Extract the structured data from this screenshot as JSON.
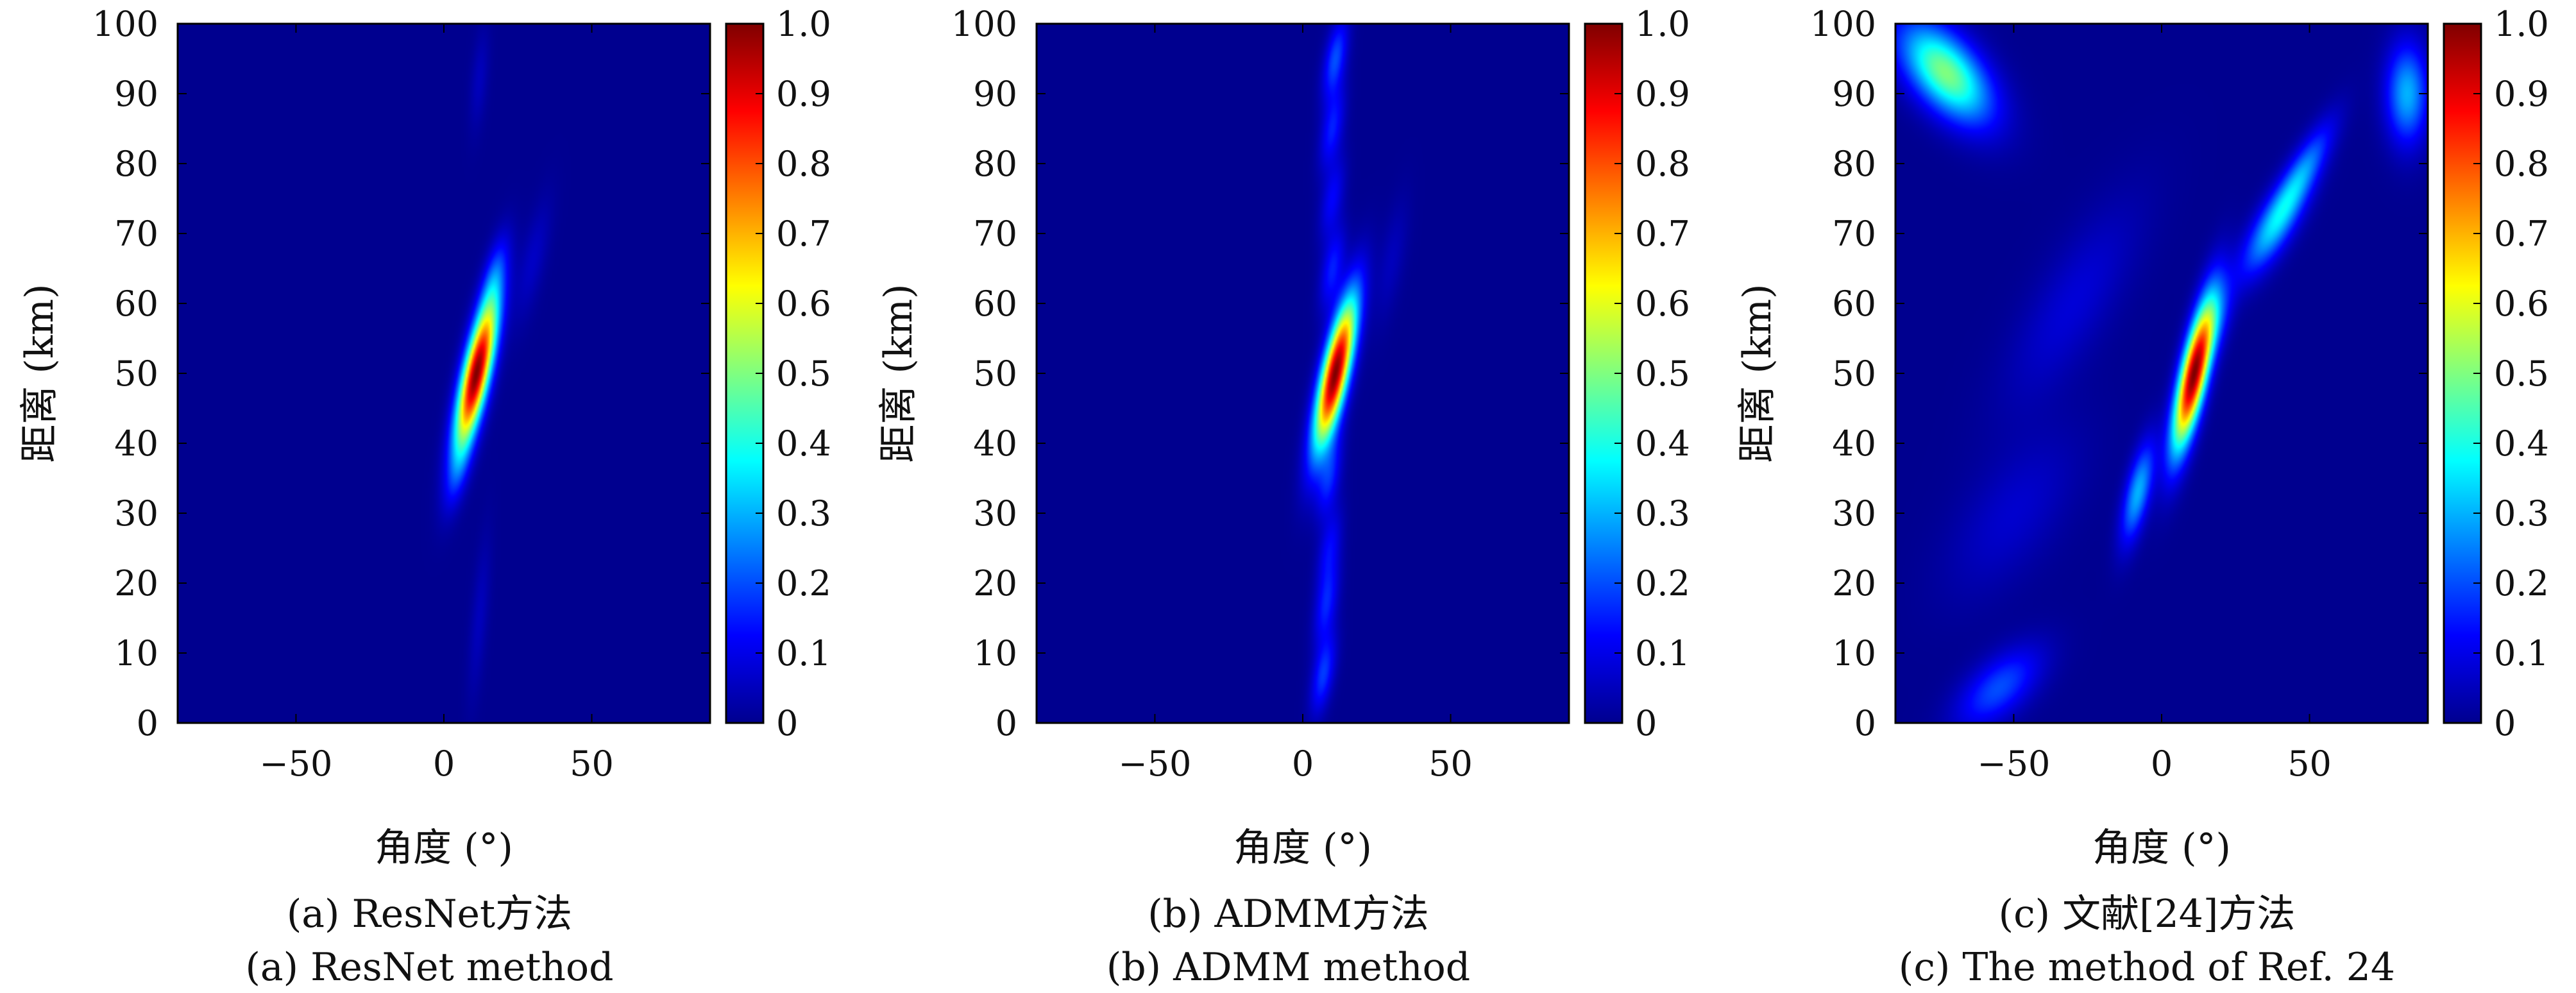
{
  "colors": {
    "jet": [
      "#00008f",
      "#0000ff",
      "#00ffff",
      "#ffff00",
      "#ff0000",
      "#800000"
    ],
    "background": "#00008f",
    "axis": "#000000"
  },
  "chart_data": [
    {
      "type": "heatmap",
      "caption_cn": "(a) ResNet方法",
      "caption_en": "(a) ResNet method",
      "xlabel": "角度 (°)",
      "ylabel": "距离 (km)",
      "xlim": [
        -90,
        90
      ],
      "ylim": [
        0,
        100
      ],
      "xticks": [
        -50,
        0,
        50
      ],
      "xtick_labels": [
        "−50",
        "0",
        "50"
      ],
      "yticks": [
        0,
        10,
        20,
        30,
        40,
        50,
        60,
        70,
        80,
        90,
        100
      ],
      "colorbar": {
        "range": [
          0,
          1
        ],
        "ticks": [
          "0",
          "0.1",
          "0.2",
          "0.3",
          "0.4",
          "0.5",
          "0.6",
          "0.7",
          "0.8",
          "0.9",
          "1.0"
        ]
      },
      "colormap": "jet",
      "peaks": [
        {
          "angle": 11,
          "range": 50,
          "value": 1.0,
          "angle_width": 3.2,
          "range_width": 7.5,
          "tilt_deg_per_km": 0.5
        },
        {
          "angle": 17,
          "range": 64,
          "value": 0.12,
          "angle_width": 2.5,
          "range_width": 4,
          "tilt_deg_per_km": 0.5
        },
        {
          "angle": 5,
          "range": 36,
          "value": 0.1,
          "angle_width": 2.5,
          "range_width": 4,
          "tilt_deg_per_km": 0.5
        },
        {
          "angle": 30,
          "range": 66,
          "value": 0.06,
          "angle_width": 3,
          "range_width": 6,
          "tilt_deg_per_km": 0.5
        },
        {
          "angle": 12,
          "range": 92,
          "value": 0.05,
          "angle_width": 2,
          "range_width": 5,
          "tilt_deg_per_km": 0.2
        },
        {
          "angle": 12,
          "range": 15,
          "value": 0.05,
          "angle_width": 2,
          "range_width": 8,
          "tilt_deg_per_km": 0.2
        }
      ]
    },
    {
      "type": "heatmap",
      "caption_cn": "(b) ADMM方法",
      "caption_en": "(b) ADMM method",
      "xlabel": "角度 (°)",
      "ylabel": "距离 (km)",
      "xlim": [
        -90,
        90
      ],
      "ylim": [
        0,
        100
      ],
      "xticks": [
        -50,
        0,
        50
      ],
      "xtick_labels": [
        "−50",
        "0",
        "50"
      ],
      "yticks": [
        0,
        10,
        20,
        30,
        40,
        50,
        60,
        70,
        80,
        90,
        100
      ],
      "colorbar": {
        "range": [
          0,
          1
        ],
        "ticks": [
          "0",
          "0.1",
          "0.2",
          "0.3",
          "0.4",
          "0.5",
          "0.6",
          "0.7",
          "0.8",
          "0.9",
          "1.0"
        ]
      },
      "colormap": "jet",
      "peaks": [
        {
          "angle": 11,
          "range": 50,
          "value": 1.0,
          "angle_width": 3.2,
          "range_width": 7.5,
          "tilt_deg_per_km": 0.5
        },
        {
          "angle": 11,
          "range": 95,
          "value": 0.2,
          "angle_width": 2.5,
          "range_width": 4,
          "tilt_deg_per_km": 0.4
        },
        {
          "angle": 10,
          "range": 85,
          "value": 0.15,
          "angle_width": 2.5,
          "range_width": 4,
          "tilt_deg_per_km": 0.4
        },
        {
          "angle": 10,
          "range": 75,
          "value": 0.12,
          "angle_width": 2.5,
          "range_width": 4,
          "tilt_deg_per_km": 0.4
        },
        {
          "angle": 10,
          "range": 65,
          "value": 0.15,
          "angle_width": 2.5,
          "range_width": 4,
          "tilt_deg_per_km": 0.4
        },
        {
          "angle": 9,
          "range": 35,
          "value": 0.15,
          "angle_width": 2.5,
          "range_width": 4,
          "tilt_deg_per_km": 0.4
        },
        {
          "angle": 9,
          "range": 25,
          "value": 0.12,
          "angle_width": 2.5,
          "range_width": 4,
          "tilt_deg_per_km": 0.4
        },
        {
          "angle": 8,
          "range": 17,
          "value": 0.15,
          "angle_width": 2.5,
          "range_width": 4,
          "tilt_deg_per_km": 0.4
        },
        {
          "angle": 7,
          "range": 7,
          "value": 0.18,
          "angle_width": 2.5,
          "range_width": 4,
          "tilt_deg_per_km": 0.4
        },
        {
          "angle": 30,
          "range": 66,
          "value": 0.05,
          "angle_width": 3,
          "range_width": 6,
          "tilt_deg_per_km": 0.4
        }
      ]
    },
    {
      "type": "heatmap",
      "caption_cn": "(c) 文献[24]方法",
      "caption_en": "(c) The method of Ref. 24",
      "xlabel": "角度 (°)",
      "ylabel": "距离 (km)",
      "xlim": [
        -90,
        90
      ],
      "ylim": [
        0,
        100
      ],
      "xticks": [
        -50,
        0,
        50
      ],
      "xtick_labels": [
        "−50",
        "0",
        "50"
      ],
      "yticks": [
        0,
        10,
        20,
        30,
        40,
        50,
        60,
        70,
        80,
        90,
        100
      ],
      "colorbar": {
        "range": [
          0,
          1
        ],
        "ticks": [
          "0",
          "0.1",
          "0.2",
          "0.3",
          "0.4",
          "0.5",
          "0.6",
          "0.7",
          "0.8",
          "0.9",
          "1.0"
        ]
      },
      "colormap": "jet",
      "peaks": [
        {
          "angle": 11,
          "range": 50,
          "value": 1.0,
          "angle_width": 3.2,
          "range_width": 7.5,
          "tilt_deg_per_km": 0.5
        },
        {
          "angle": -73,
          "range": 93,
          "value": 0.5,
          "angle_width": 9,
          "range_width": 5,
          "tilt_deg_per_km": -1.2
        },
        {
          "angle": 83,
          "range": 90,
          "value": 0.3,
          "angle_width": 5,
          "range_width": 5,
          "tilt_deg_per_km": 0
        },
        {
          "angle": 38,
          "range": 71,
          "value": 0.3,
          "angle_width": 5,
          "range_width": 5,
          "tilt_deg_per_km": 1.2
        },
        {
          "angle": 48,
          "range": 79,
          "value": 0.22,
          "angle_width": 4,
          "range_width": 5,
          "tilt_deg_per_km": 1.2
        },
        {
          "angle": -8,
          "range": 33,
          "value": 0.3,
          "angle_width": 3,
          "range_width": 5,
          "tilt_deg_per_km": 0.5
        },
        {
          "angle": -55,
          "range": 5,
          "value": 0.2,
          "angle_width": 8,
          "range_width": 4,
          "tilt_deg_per_km": 1.5
        },
        {
          "angle": -30,
          "range": 60,
          "value": 0.08,
          "angle_width": 10,
          "range_width": 10,
          "tilt_deg_per_km": 1.2
        },
        {
          "angle": -50,
          "range": 30,
          "value": 0.07,
          "angle_width": 12,
          "range_width": 8,
          "tilt_deg_per_km": 1.2
        },
        {
          "angle": 20,
          "range": 58,
          "value": 0.1,
          "angle_width": 3,
          "range_width": 4,
          "tilt_deg_per_km": 0.5
        }
      ]
    }
  ]
}
